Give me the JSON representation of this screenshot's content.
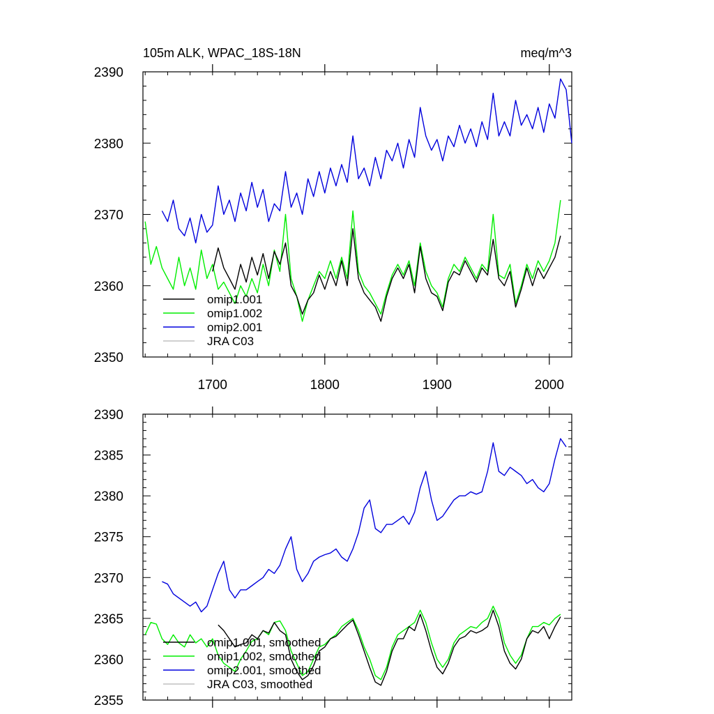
{
  "figure": {
    "title_left": "105m ALK, WPAC_18S-18N",
    "title_right": "meq/m^3"
  },
  "colors": {
    "omip1.001": "#000000",
    "omip1.002": "#00ee00",
    "omip2.001": "#0000dd",
    "JRA C03": "#c0c0c0"
  },
  "chart_data": [
    {
      "type": "line",
      "panel": "top",
      "title": "105m ALK, WPAC_18S-18N",
      "units_label": "meq/m^3",
      "xlim": [
        1638,
        2020
      ],
      "ylim": [
        2350,
        2390
      ],
      "xticks": [
        1700,
        1800,
        1900,
        2000
      ],
      "xtick_labels": [
        "1700",
        "1800",
        "1900",
        "2000"
      ],
      "yticks": [
        2350,
        2360,
        2370,
        2380,
        2390
      ],
      "ytick_labels": [
        "2350",
        "2360",
        "2370",
        "2380",
        "2390"
      ],
      "legend_position": "lower-left",
      "series": [
        {
          "name": "omip1.001",
          "x": [
            1700,
            1705,
            1710,
            1715,
            1720,
            1725,
            1730,
            1735,
            1740,
            1745,
            1750,
            1755,
            1760,
            1765,
            1770,
            1775,
            1780,
            1785,
            1790,
            1795,
            1800,
            1805,
            1810,
            1815,
            1820,
            1825,
            1830,
            1835,
            1840,
            1845,
            1850,
            1855,
            1860,
            1865,
            1870,
            1875,
            1880,
            1885,
            1890,
            1895,
            1900,
            1905,
            1910,
            1915,
            1920,
            1925,
            1930,
            1935,
            1940,
            1945,
            1950,
            1955,
            1960,
            1965,
            1970,
            1975,
            1980,
            1985,
            1990,
            1995,
            2000,
            2005,
            2010
          ],
          "values": [
            2362,
            2365.3,
            2362.5,
            2361,
            2359.5,
            2363,
            2360.5,
            2364,
            2361.5,
            2364.5,
            2361,
            2364.8,
            2363,
            2366,
            2360,
            2358.5,
            2356,
            2358,
            2359,
            2361.5,
            2359.5,
            2362,
            2360,
            2363.5,
            2360,
            2368,
            2361,
            2359,
            2358,
            2357,
            2355,
            2358.5,
            2361,
            2362.5,
            2361,
            2363,
            2359,
            2365.5,
            2361,
            2359,
            2358.5,
            2356.5,
            2360.5,
            2362,
            2361.5,
            2363.5,
            2362,
            2360.5,
            2362.5,
            2361.5,
            2366.5,
            2361,
            2360,
            2362,
            2357,
            2359.5,
            2362.5,
            2360,
            2362.5,
            2361,
            2362.5,
            2364,
            2367
          ]
        },
        {
          "name": "omip1.002",
          "x": [
            1640,
            1645,
            1650,
            1655,
            1660,
            1665,
            1670,
            1675,
            1680,
            1685,
            1690,
            1695,
            1700,
            1705,
            1710,
            1715,
            1720,
            1725,
            1730,
            1735,
            1740,
            1745,
            1750,
            1755,
            1760,
            1765,
            1770,
            1775,
            1780,
            1785,
            1790,
            1795,
            1800,
            1805,
            1810,
            1815,
            1820,
            1825,
            1830,
            1835,
            1840,
            1845,
            1850,
            1855,
            1860,
            1865,
            1870,
            1875,
            1880,
            1885,
            1890,
            1895,
            1900,
            1905,
            1910,
            1915,
            1920,
            1925,
            1930,
            1935,
            1940,
            1945,
            1950,
            1955,
            1960,
            1965,
            1970,
            1975,
            1980,
            1985,
            1990,
            1995,
            2000,
            2005,
            2010
          ],
          "values": [
            2369,
            2363,
            2365.5,
            2362.5,
            2361,
            2359.5,
            2364,
            2360,
            2362.5,
            2359.5,
            2365,
            2361,
            2363,
            2359.5,
            2360.5,
            2359,
            2357.5,
            2360,
            2358.5,
            2361,
            2359,
            2363,
            2360,
            2365,
            2362,
            2370,
            2361,
            2358.5,
            2355,
            2358,
            2360,
            2362,
            2361,
            2363.5,
            2361,
            2364,
            2361,
            2370.5,
            2362,
            2360,
            2359,
            2357.5,
            2356,
            2359,
            2361.5,
            2363,
            2361.5,
            2363.5,
            2360,
            2366,
            2362,
            2360,
            2359,
            2357,
            2361,
            2363,
            2362,
            2364,
            2362.5,
            2361,
            2363,
            2362,
            2370,
            2361.5,
            2361,
            2363,
            2357.5,
            2360,
            2363,
            2361,
            2363.5,
            2362,
            2363.5,
            2366,
            2372
          ]
        },
        {
          "name": "omip2.001",
          "x": [
            1655,
            1660,
            1665,
            1670,
            1675,
            1680,
            1685,
            1690,
            1695,
            1700,
            1705,
            1710,
            1715,
            1720,
            1725,
            1730,
            1735,
            1740,
            1745,
            1750,
            1755,
            1760,
            1765,
            1770,
            1775,
            1780,
            1785,
            1790,
            1795,
            1800,
            1805,
            1810,
            1815,
            1820,
            1825,
            1830,
            1835,
            1840,
            1845,
            1850,
            1855,
            1860,
            1865,
            1870,
            1875,
            1880,
            1885,
            1890,
            1895,
            1900,
            1905,
            1910,
            1915,
            1920,
            1925,
            1930,
            1935,
            1940,
            1945,
            1950,
            1955,
            1960,
            1965,
            1970,
            1975,
            1980,
            1985,
            1990,
            1995,
            2000,
            2005,
            2010,
            2015,
            2020
          ],
          "values": [
            2370.5,
            2369,
            2372,
            2368,
            2367,
            2369.5,
            2366,
            2370,
            2367.5,
            2368.5,
            2374,
            2370,
            2372,
            2369,
            2373,
            2370.5,
            2374.5,
            2371,
            2373.5,
            2369,
            2371.5,
            2370.5,
            2376,
            2371,
            2373,
            2370,
            2375,
            2372.5,
            2376,
            2373,
            2376.5,
            2374,
            2377,
            2374.5,
            2381,
            2375,
            2376.5,
            2374,
            2378,
            2375,
            2379,
            2377.5,
            2380,
            2376.5,
            2380.5,
            2378,
            2385,
            2381,
            2379,
            2380.5,
            2377.5,
            2381,
            2379.5,
            2382.5,
            2380,
            2382,
            2379.5,
            2383,
            2380.5,
            2387,
            2381,
            2383,
            2381,
            2386,
            2382.5,
            2384,
            2382,
            2385,
            2381.5,
            2385.5,
            2383.5,
            2389,
            2387.5,
            2380
          ]
        },
        {
          "name": "JRA C03",
          "x": [],
          "values": []
        }
      ]
    },
    {
      "type": "line",
      "panel": "bottom",
      "xlim": [
        1638,
        2020
      ],
      "ylim": [
        2355,
        2390
      ],
      "xticks": [
        1700,
        1800,
        1900,
        2000
      ],
      "yticks": [
        2355,
        2360,
        2365,
        2370,
        2375,
        2380,
        2385,
        2390
      ],
      "ytick_labels": [
        "2355",
        "2360",
        "2365",
        "2370",
        "2375",
        "2380",
        "2385",
        "2390"
      ],
      "legend_position": "lower-left",
      "series": [
        {
          "name": "omip1.001, smoothed",
          "x": [
            1705,
            1710,
            1715,
            1720,
            1725,
            1730,
            1735,
            1740,
            1745,
            1750,
            1755,
            1760,
            1765,
            1770,
            1775,
            1780,
            1785,
            1790,
            1795,
            1800,
            1805,
            1810,
            1815,
            1820,
            1825,
            1830,
            1835,
            1840,
            1845,
            1850,
            1855,
            1860,
            1865,
            1870,
            1875,
            1880,
            1885,
            1890,
            1895,
            1900,
            1905,
            1910,
            1915,
            1920,
            1925,
            1930,
            1935,
            1940,
            1945,
            1950,
            1955,
            1960,
            1965,
            1970,
            1975,
            1980,
            1985,
            1990,
            1995,
            2000,
            2005,
            2010
          ],
          "values": [
            2364.2,
            2363.5,
            2362.5,
            2361.5,
            2361.8,
            2362,
            2363,
            2362.5,
            2363.5,
            2363.2,
            2364.5,
            2363.5,
            2363,
            2360,
            2358.5,
            2357.5,
            2358,
            2359.2,
            2361,
            2361.5,
            2362.5,
            2362.8,
            2363.5,
            2364.2,
            2364.8,
            2363,
            2361,
            2359,
            2357.2,
            2356.8,
            2358.5,
            2361,
            2362.5,
            2362.5,
            2364,
            2363.5,
            2365.5,
            2363.5,
            2361,
            2359,
            2358.2,
            2359.5,
            2361.5,
            2362.5,
            2362.8,
            2363.5,
            2363.2,
            2363.5,
            2364,
            2366,
            2364,
            2361,
            2359.5,
            2358.8,
            2360,
            2362.5,
            2363.5,
            2363.2,
            2364,
            2362.5,
            2364,
            2365.2
          ]
        },
        {
          "name": "omip1.002, smoothed",
          "x": [
            1640,
            1645,
            1650,
            1655,
            1660,
            1665,
            1670,
            1675,
            1680,
            1685,
            1690,
            1695,
            1700,
            1705,
            1710,
            1715,
            1720,
            1725,
            1730,
            1735,
            1740,
            1745,
            1750,
            1755,
            1760,
            1765,
            1770,
            1775,
            1780,
            1785,
            1790,
            1795,
            1800,
            1805,
            1810,
            1815,
            1820,
            1825,
            1830,
            1835,
            1840,
            1845,
            1850,
            1855,
            1860,
            1865,
            1870,
            1875,
            1880,
            1885,
            1890,
            1895,
            1900,
            1905,
            1910,
            1915,
            1920,
            1925,
            1930,
            1935,
            1940,
            1945,
            1950,
            1955,
            1960,
            1965,
            1970,
            1975,
            1980,
            1985,
            1990,
            1995,
            2000,
            2005,
            2010
          ],
          "values": [
            2363,
            2364.5,
            2364.3,
            2362.5,
            2361.8,
            2363,
            2362,
            2361.5,
            2363,
            2362,
            2362.5,
            2361.5,
            2362.5,
            2360.5,
            2359.5,
            2359,
            2358.5,
            2360,
            2361,
            2362.2,
            2362.5,
            2363.5,
            2363,
            2364.5,
            2364.7,
            2363.5,
            2361,
            2359.5,
            2358,
            2358.5,
            2360,
            2361.5,
            2361.8,
            2362.5,
            2363,
            2364,
            2364.5,
            2365,
            2363.5,
            2361.5,
            2360,
            2358,
            2357.5,
            2359,
            2361.5,
            2363,
            2363.5,
            2364,
            2364.5,
            2366,
            2364.5,
            2362,
            2360,
            2359,
            2360,
            2362,
            2363,
            2363.5,
            2364,
            2363.8,
            2364.5,
            2365,
            2366.5,
            2365,
            2362,
            2360.5,
            2359.5,
            2360.5,
            2362.5,
            2364,
            2364,
            2364.5,
            2364.2,
            2365,
            2365.5
          ]
        },
        {
          "name": "omip2.001, smoothed",
          "x": [
            1655,
            1660,
            1665,
            1670,
            1675,
            1680,
            1685,
            1690,
            1695,
            1700,
            1705,
            1710,
            1715,
            1720,
            1725,
            1730,
            1735,
            1740,
            1745,
            1750,
            1755,
            1760,
            1765,
            1770,
            1775,
            1780,
            1785,
            1790,
            1795,
            1800,
            1805,
            1810,
            1815,
            1820,
            1825,
            1830,
            1835,
            1840,
            1845,
            1850,
            1855,
            1860,
            1865,
            1870,
            1875,
            1880,
            1885,
            1890,
            1895,
            1900,
            1905,
            1910,
            1915,
            1920,
            1925,
            1930,
            1935,
            1940,
            1945,
            1950,
            1955,
            1960,
            1965,
            1970,
            1975,
            1980,
            1985,
            1990,
            1995,
            2000,
            2005,
            2010,
            2015
          ],
          "values": [
            2369.5,
            2369.2,
            2368,
            2367.5,
            2367,
            2366.5,
            2367,
            2365.8,
            2366.5,
            2368.5,
            2370.5,
            2372,
            2368.5,
            2367.5,
            2368.5,
            2368.5,
            2369,
            2369.5,
            2370,
            2371,
            2370.5,
            2371.5,
            2373.5,
            2375,
            2371,
            2369.5,
            2370.5,
            2372,
            2372.5,
            2372.8,
            2373,
            2373.5,
            2372.5,
            2372,
            2373.5,
            2375.5,
            2378.5,
            2379.5,
            2376,
            2375.5,
            2376.5,
            2376.5,
            2377,
            2377.5,
            2376.5,
            2378,
            2381,
            2383,
            2379.5,
            2377,
            2377.5,
            2378.5,
            2379.5,
            2380,
            2380,
            2380.5,
            2380.2,
            2380.5,
            2383,
            2386.5,
            2383,
            2382.5,
            2383.5,
            2383,
            2382.5,
            2381.5,
            2382,
            2381,
            2380.5,
            2381.5,
            2384.5,
            2387,
            2386
          ]
        },
        {
          "name": "JRA C03, smoothed",
          "x": [],
          "values": []
        }
      ]
    }
  ]
}
